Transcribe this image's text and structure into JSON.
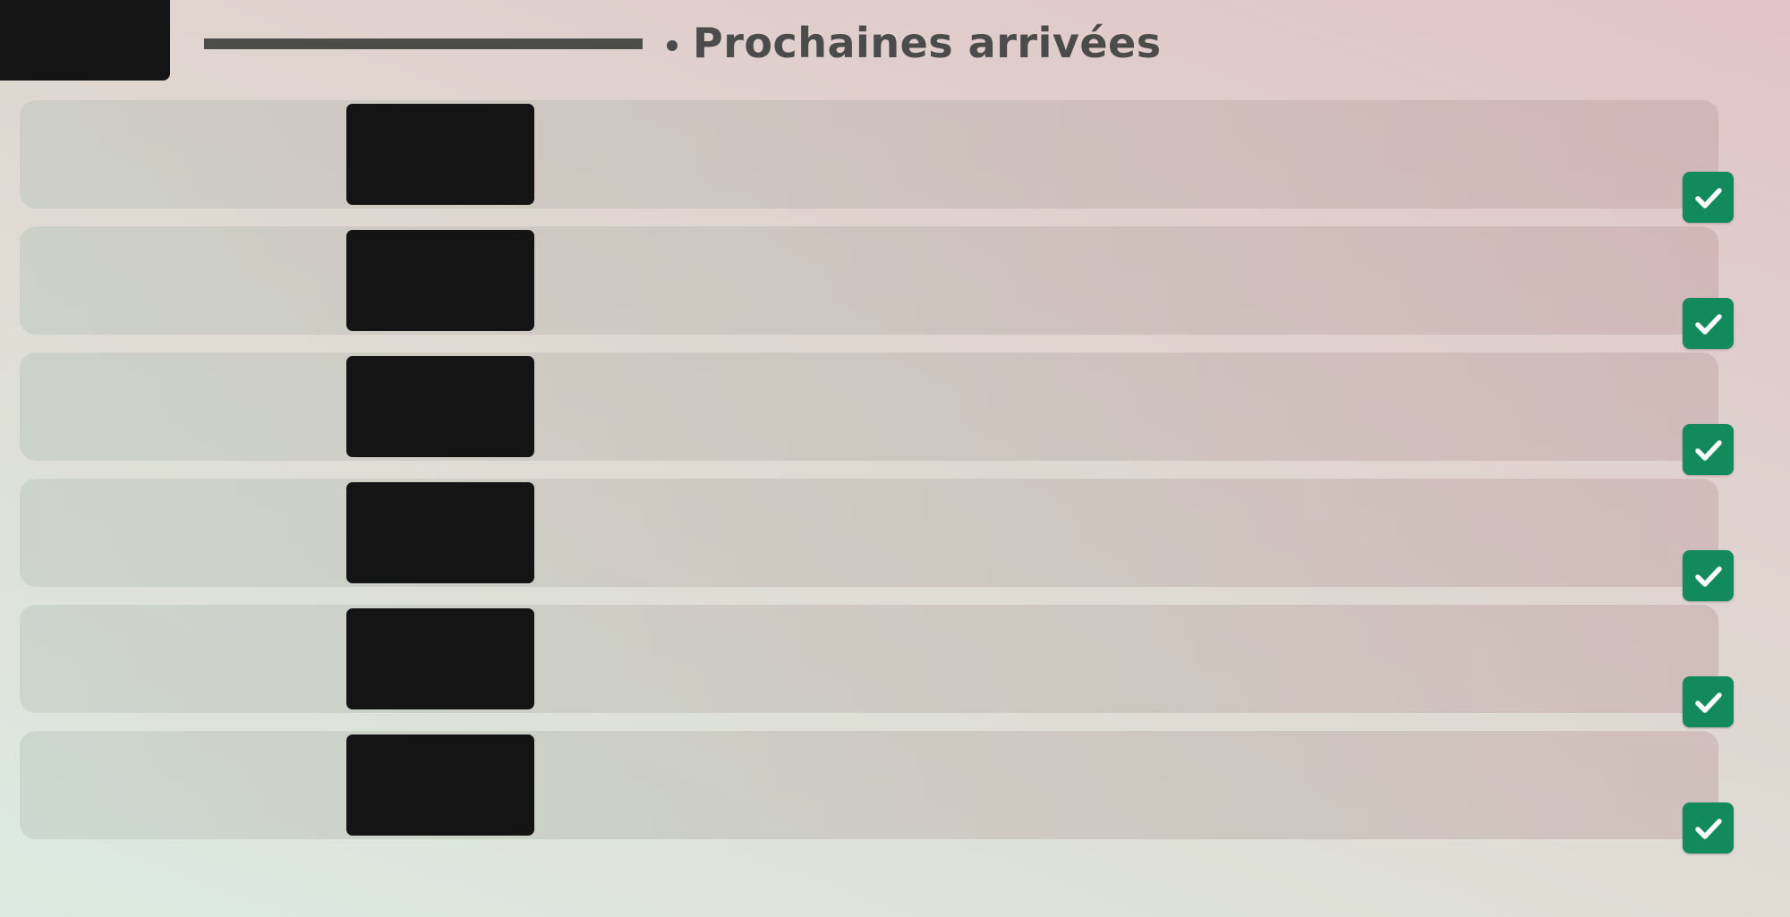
{
  "header": {
    "title": "Prochaines arrivées"
  },
  "colors": {
    "status_ok": "#138a5c",
    "title_text": "#4b4b4b",
    "thumbnail": "#141414"
  },
  "rows": [
    {
      "status_icon": "check-icon"
    },
    {
      "status_icon": "check-icon"
    },
    {
      "status_icon": "check-icon"
    },
    {
      "status_icon": "check-icon"
    },
    {
      "status_icon": "check-icon"
    },
    {
      "status_icon": "check-icon"
    }
  ]
}
